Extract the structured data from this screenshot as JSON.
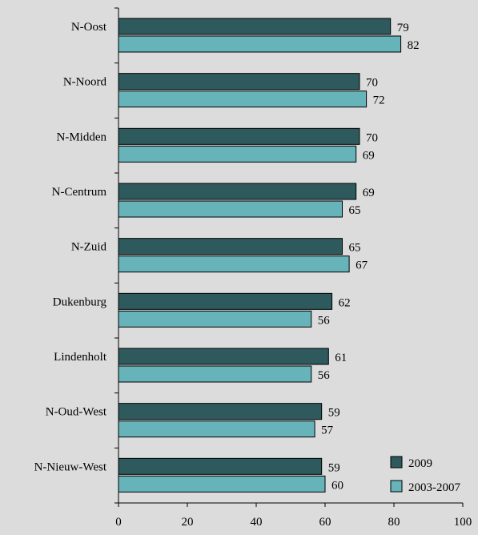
{
  "chart_data": {
    "type": "bar",
    "orientation": "horizontal",
    "categories": [
      "N-Oost",
      "N-Noord",
      "N-Midden",
      "N-Centrum",
      "N-Zuid",
      "Dukenburg",
      "Lindenholt",
      "N-Oud-West",
      "N-Nieuw-West"
    ],
    "series": [
      {
        "name": "2009",
        "color": "#2e5a5e",
        "values": [
          79,
          70,
          70,
          69,
          65,
          62,
          61,
          59,
          59
        ]
      },
      {
        "name": "2003-2007",
        "color": "#66b3ba",
        "values": [
          82,
          72,
          69,
          65,
          67,
          56,
          56,
          57,
          60
        ]
      }
    ],
    "xlim": [
      0,
      100
    ],
    "x_ticks": [
      "0",
      "20",
      "40",
      "60",
      "80",
      "100"
    ],
    "legend_position": "bottom-right",
    "grid": false,
    "title": "",
    "xlabel": "",
    "ylabel": ""
  }
}
